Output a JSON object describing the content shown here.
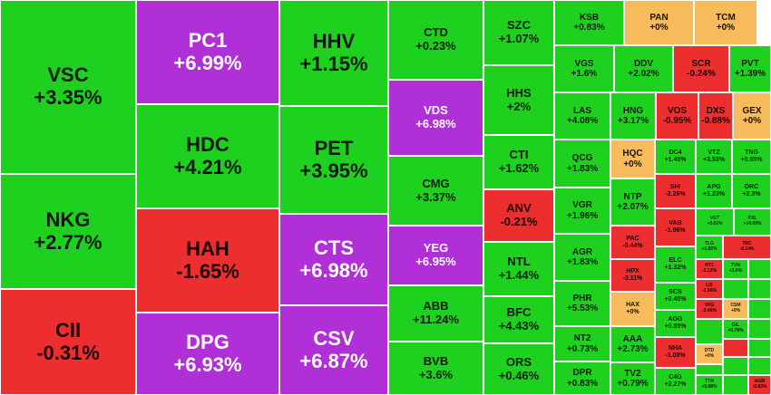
{
  "colors": {
    "up": "#1fd11f",
    "down": "#ec2e2e",
    "ceiling": "#b12fd6",
    "reference": "#f7bb5c"
  },
  "tiles": [
    {
      "s": "VSC",
      "p": "+3.35%",
      "c": "up",
      "z": 1
    },
    {
      "s": "NKG",
      "p": "+2.77%",
      "c": "up",
      "z": 1
    },
    {
      "s": "CII",
      "p": "-0.31%",
      "c": "down",
      "z": 1
    },
    {
      "s": "PC1",
      "p": "+6.99%",
      "c": "ceil",
      "z": 1
    },
    {
      "s": "HDC",
      "p": "+4.21%",
      "c": "up",
      "z": 1
    },
    {
      "s": "HAH",
      "p": "-1.65%",
      "c": "down",
      "z": 1
    },
    {
      "s": "DPG",
      "p": "+6.93%",
      "c": "ceil",
      "z": 1
    },
    {
      "s": "HHV",
      "p": "+1.15%",
      "c": "up",
      "z": 1
    },
    {
      "s": "PET",
      "p": "+3.95%",
      "c": "up",
      "z": 1
    },
    {
      "s": "CTS",
      "p": "+6.98%",
      "c": "ceil",
      "z": 1
    },
    {
      "s": "CSV",
      "p": "+6.87%",
      "c": "ceil",
      "z": 1
    },
    {
      "s": "CTD",
      "p": "+0.23%",
      "c": "up",
      "z": 2
    },
    {
      "s": "VDS",
      "p": "+6.98%",
      "c": "ceil",
      "z": 2
    },
    {
      "s": "CMG",
      "p": "+3.37%",
      "c": "up",
      "z": 2
    },
    {
      "s": "YEG",
      "p": "+6.95%",
      "c": "ceil",
      "z": 2
    },
    {
      "s": "ABB",
      "p": "+11.24%",
      "c": "up",
      "z": 2
    },
    {
      "s": "BVB",
      "p": "+3.6%",
      "c": "up",
      "z": 2
    },
    {
      "s": "SZC",
      "p": "+1.07%",
      "c": "up",
      "z": 2
    },
    {
      "s": "HHS",
      "p": "+2%",
      "c": "up",
      "z": 2
    },
    {
      "s": "CTI",
      "p": "+1.62%",
      "c": "up",
      "z": 2
    },
    {
      "s": "ANV",
      "p": "-0.21%",
      "c": "down",
      "z": 2
    },
    {
      "s": "NTL",
      "p": "+1.44%",
      "c": "up",
      "z": 2
    },
    {
      "s": "BFC",
      "p": "+4.43%",
      "c": "up",
      "z": 2
    },
    {
      "s": "ORS",
      "p": "+0.46%",
      "c": "up",
      "z": 2
    },
    {
      "s": "KSB",
      "p": "+0.83%",
      "c": "up",
      "z": 3
    },
    {
      "s": "PAN",
      "p": "+0%",
      "c": "ref",
      "z": 3
    },
    {
      "s": "TCM",
      "p": "+0%",
      "c": "ref",
      "z": 3
    },
    {
      "s": "VGS",
      "p": "+1.6%",
      "c": "up",
      "z": 3
    },
    {
      "s": "DDV",
      "p": "+2.02%",
      "c": "up",
      "z": 3
    },
    {
      "s": "SCR",
      "p": "-0.24%",
      "c": "down",
      "z": 3
    },
    {
      "s": "PVT",
      "p": "+1.39%",
      "c": "up",
      "z": 3
    },
    {
      "s": "LAS",
      "p": "+4.08%",
      "c": "up",
      "z": 3
    },
    {
      "s": "HNG",
      "p": "+3.17%",
      "c": "up",
      "z": 3
    },
    {
      "s": "VOS",
      "p": "-0.95%",
      "c": "down",
      "z": 3
    },
    {
      "s": "DXS",
      "p": "-0.88%",
      "c": "down",
      "z": 3
    },
    {
      "s": "GEX",
      "p": "+0%",
      "c": "ref",
      "z": 3
    },
    {
      "s": "QCG",
      "p": "+1.83%",
      "c": "up",
      "z": 3
    },
    {
      "s": "HQC",
      "p": "+0%",
      "c": "ref",
      "z": 3
    },
    {
      "s": "VGR",
      "p": "+1.96%",
      "c": "up",
      "z": 3
    },
    {
      "s": "NTP",
      "p": "+2.07%",
      "c": "up",
      "z": 3
    },
    {
      "s": "AGR",
      "p": "+1.83%",
      "c": "up",
      "z": 3
    },
    {
      "s": "PHR",
      "p": "+5.53%",
      "c": "up",
      "z": 3
    },
    {
      "s": "NT2",
      "p": "+0.73%",
      "c": "up",
      "z": 3
    },
    {
      "s": "DPR",
      "p": "+0.83%",
      "c": "up",
      "z": 3
    },
    {
      "s": "AAA",
      "p": "+2.73%",
      "c": "up",
      "z": 3
    },
    {
      "s": "TV2",
      "p": "+0.79%",
      "c": "up",
      "z": 3
    },
    {
      "s": "DC4",
      "p": "+1.45%",
      "c": "up",
      "z": 4
    },
    {
      "s": "VTZ",
      "p": "+3.53%",
      "c": "up",
      "z": 4
    },
    {
      "s": "TNG",
      "p": "+0.95%",
      "c": "up",
      "z": 4
    },
    {
      "s": "SHI",
      "p": "-2.26%",
      "c": "down",
      "z": 4
    },
    {
      "s": "APG",
      "p": "+1.23%",
      "c": "up",
      "z": 4
    },
    {
      "s": "DRC",
      "p": "+2.3%",
      "c": "up",
      "z": 4
    },
    {
      "s": "PAC",
      "p": "-0.44%",
      "c": "down",
      "z": 4
    },
    {
      "s": "VAB",
      "p": "-1.96%",
      "c": "down",
      "z": 4
    },
    {
      "s": "HPX",
      "p": "-3.11%",
      "c": "down",
      "z": 4
    },
    {
      "s": "ELC",
      "p": "+1.32%",
      "c": "up",
      "z": 4
    },
    {
      "s": "HAX",
      "p": "+0%",
      "c": "ref",
      "z": 4
    },
    {
      "s": "SCS",
      "p": "+0.45%",
      "c": "up",
      "z": 4
    },
    {
      "s": "AGG",
      "p": "+0.85%",
      "c": "up",
      "z": 4
    },
    {
      "s": "NHA",
      "p": "-1.09%",
      "c": "down",
      "z": 4
    },
    {
      "s": "C4G",
      "p": "+2.27%",
      "c": "up",
      "z": 4
    },
    {
      "s": "VGT",
      "p": "+0.61%",
      "c": "up",
      "z": 5
    },
    {
      "s": "PXL",
      "p": "+14.09%",
      "c": "up",
      "z": 5
    },
    {
      "s": "TLG",
      "p": "+1.65%",
      "c": "up",
      "z": 5
    },
    {
      "s": "TRC",
      "p": "-0.14%",
      "c": "down",
      "z": 5
    },
    {
      "s": "HT1",
      "p": "-2.12%",
      "c": "down",
      "z": 5
    },
    {
      "s": "TVN",
      "p": "+3.6%",
      "c": "up",
      "z": 5
    },
    {
      "s": "LIX",
      "p": "-1.96%",
      "c": "down",
      "z": 5
    },
    {
      "s": "VFG",
      "p": "-2.46%",
      "c": "down",
      "z": 5
    },
    {
      "s": "CSM",
      "p": "+0%",
      "c": "ref",
      "z": 5
    },
    {
      "s": "GIL",
      "p": "+0.78%",
      "c": "up",
      "z": 5
    },
    {
      "s": "DTD",
      "p": "+0%",
      "c": "ref",
      "z": 5
    },
    {
      "s": "TTH",
      "p": "+5.88%",
      "c": "up",
      "z": 5
    },
    {
      "s": "AGM",
      "p": "-0.83%",
      "c": "down",
      "z": 5
    }
  ]
}
